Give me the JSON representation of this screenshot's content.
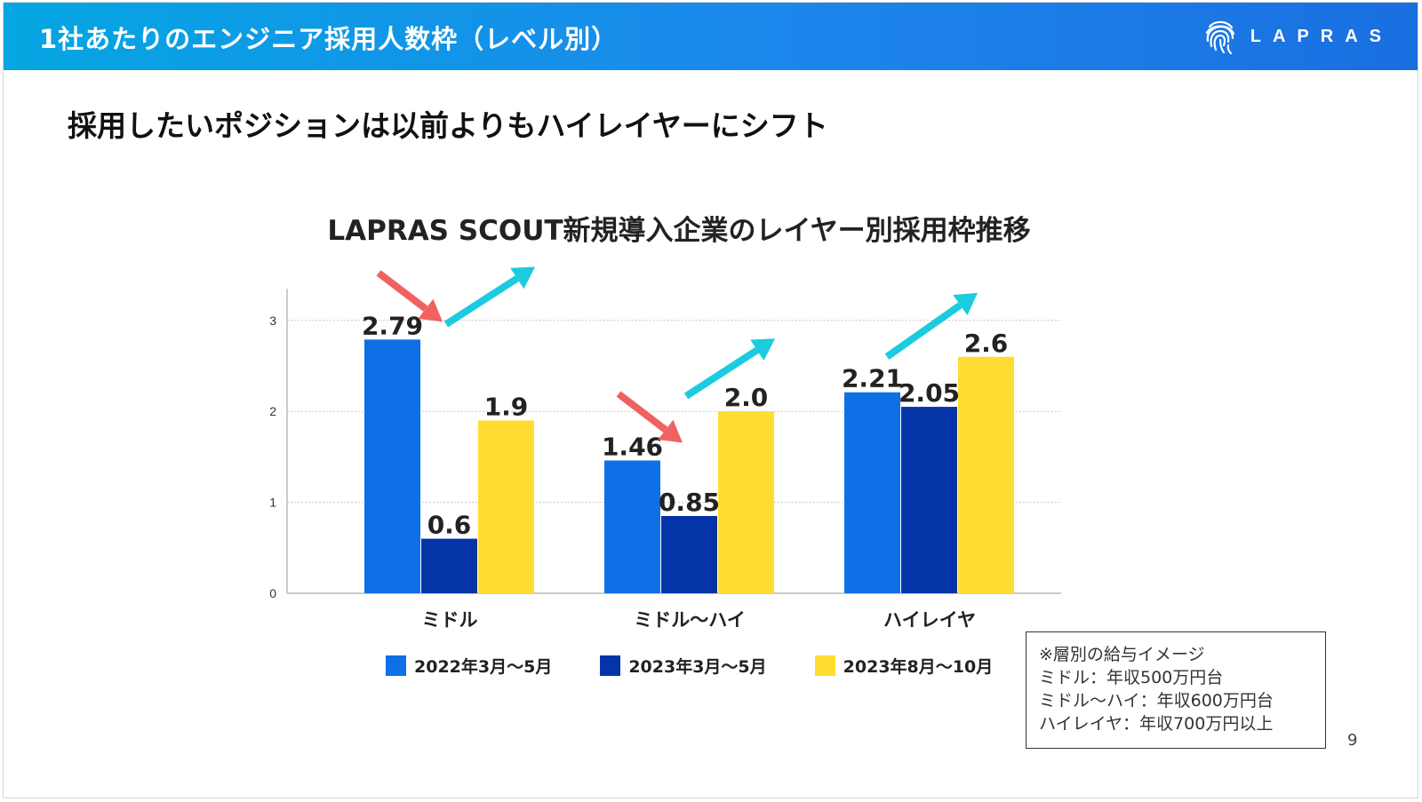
{
  "header": {
    "title": "1社あたりのエンジニア採用人数枠（レベル別）",
    "logo_text": "LAPRAS",
    "logo_icon": "fingerprint-icon",
    "bg_color": "#1a84e8"
  },
  "subtitle": "採用したいポジションは以前よりもハイレイヤーにシフト",
  "chart_data": {
    "type": "bar",
    "title": "LAPRAS SCOUT新規導入企業のレイヤー別採用枠推移",
    "categories": [
      "ミドル",
      "ミドル〜ハイ",
      "ハイレイヤ"
    ],
    "series": [
      {
        "name": "2022年3月〜5月",
        "values": [
          2.79,
          1.46,
          2.21
        ],
        "labels": [
          "2.79",
          "1.46",
          "2.21"
        ],
        "color": "#0f6fe6"
      },
      {
        "name": "2023年3月〜5月",
        "values": [
          0.6,
          0.85,
          2.05
        ],
        "labels": [
          "0.6",
          "0.85",
          "2.05"
        ],
        "color": "#0534a8"
      },
      {
        "name": "2023年8月〜10月",
        "values": [
          1.9,
          2.0,
          2.6
        ],
        "labels": [
          "1.9",
          "2.0",
          "2.6"
        ],
        "color": "#fedc32"
      }
    ],
    "ylim": [
      0,
      3.3
    ],
    "yticks": [
      0,
      1,
      2,
      3
    ],
    "grid": true,
    "legend": "bottom",
    "xlabel": "",
    "ylabel": "",
    "annotations": [
      {
        "type": "arrow-down",
        "color": "#f06262",
        "category": "ミドル"
      },
      {
        "type": "arrow-up",
        "color": "#1bcbdf",
        "category": "ミドル"
      },
      {
        "type": "arrow-down",
        "color": "#f06262",
        "category": "ミドル〜ハイ"
      },
      {
        "type": "arrow-up",
        "color": "#1bcbdf",
        "category": "ミドル〜ハイ"
      },
      {
        "type": "arrow-up",
        "color": "#1bcbdf",
        "category": "ハイレイヤ"
      }
    ]
  },
  "note": {
    "lines": [
      "※層別の給与イメージ",
      "ミドル：年収500万円台",
      "ミドル〜ハイ：年収600万円台",
      "ハイレイヤ：年収700万円以上"
    ]
  },
  "page_number": "9"
}
